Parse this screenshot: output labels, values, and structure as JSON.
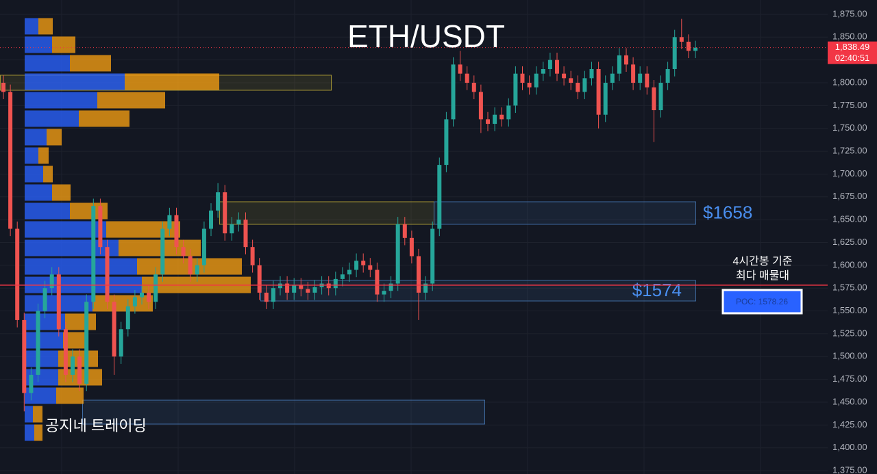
{
  "chart_data": {
    "type": "candlestick",
    "title": "ETH/USDT",
    "watermark": "공지네 트레이딩",
    "up_color": "#26a69a",
    "down_color": "#ef5350",
    "open": [
      1800,
      1790,
      1640,
      1540,
      1460,
      1480,
      1550,
      1575,
      1590,
      1530,
      1480,
      1500,
      1470,
      1560,
      1665,
      1620,
      1560,
      1500,
      1530,
      1555,
      1565,
      1570,
      1560,
      1590,
      1640,
      1655,
      1620,
      1610,
      1590,
      1600,
      1640,
      1660,
      1680,
      1635,
      1645,
      1650,
      1620,
      1600,
      1570,
      1560,
      1575,
      1580,
      1570,
      1578,
      1574,
      1570,
      1576,
      1580,
      1575,
      1585,
      1590,
      1595,
      1605,
      1600,
      1595,
      1568,
      1572,
      1580,
      1645,
      1630,
      1610,
      1570,
      1580,
      1640,
      1710,
      1760,
      1820,
      1810,
      1800,
      1790,
      1760,
      1755,
      1765,
      1760,
      1775,
      1810,
      1800,
      1795,
      1810,
      1815,
      1825,
      1810,
      1805,
      1800,
      1790,
      1805,
      1815,
      1765,
      1800,
      1810,
      1830,
      1820,
      1800,
      1810,
      1795,
      1770,
      1800,
      1815,
      1850,
      1845,
      1835
    ],
    "high": [
      1808,
      1798,
      1648,
      1548,
      1488,
      1558,
      1583,
      1598,
      1598,
      1538,
      1508,
      1508,
      1568,
      1673,
      1673,
      1628,
      1568,
      1538,
      1563,
      1573,
      1578,
      1578,
      1598,
      1648,
      1663,
      1663,
      1628,
      1618,
      1608,
      1648,
      1668,
      1690,
      1688,
      1653,
      1658,
      1658,
      1628,
      1608,
      1578,
      1583,
      1588,
      1588,
      1586,
      1586,
      1582,
      1584,
      1588,
      1588,
      1593,
      1598,
      1603,
      1613,
      1613,
      1608,
      1603,
      1580,
      1588,
      1653,
      1653,
      1638,
      1618,
      1588,
      1648,
      1718,
      1768,
      1828,
      1835,
      1818,
      1808,
      1798,
      1768,
      1773,
      1773,
      1783,
      1818,
      1818,
      1808,
      1818,
      1823,
      1833,
      1833,
      1818,
      1813,
      1808,
      1813,
      1823,
      1823,
      1808,
      1818,
      1838,
      1838,
      1828,
      1818,
      1818,
      1803,
      1808,
      1823,
      1858,
      1870,
      1853,
      1846
    ],
    "low": [
      1782,
      1632,
      1532,
      1440,
      1452,
      1472,
      1542,
      1567,
      1522,
      1472,
      1472,
      1462,
      1462,
      1552,
      1612,
      1552,
      1480,
      1492,
      1522,
      1547,
      1557,
      1552,
      1552,
      1582,
      1632,
      1612,
      1602,
      1582,
      1582,
      1592,
      1632,
      1652,
      1627,
      1627,
      1637,
      1612,
      1592,
      1562,
      1552,
      1552,
      1567,
      1562,
      1562,
      1566,
      1562,
      1562,
      1568,
      1567,
      1567,
      1577,
      1582,
      1587,
      1592,
      1587,
      1560,
      1560,
      1564,
      1572,
      1622,
      1602,
      1540,
      1562,
      1572,
      1632,
      1702,
      1752,
      1802,
      1792,
      1782,
      1745,
      1747,
      1747,
      1752,
      1752,
      1767,
      1792,
      1787,
      1787,
      1802,
      1807,
      1802,
      1797,
      1792,
      1782,
      1782,
      1797,
      1750,
      1757,
      1792,
      1802,
      1812,
      1792,
      1792,
      1787,
      1735,
      1762,
      1792,
      1807,
      1837,
      1827,
      1827
    ],
    "close": [
      1790,
      1640,
      1540,
      1460,
      1480,
      1550,
      1575,
      1590,
      1530,
      1480,
      1500,
      1470,
      1560,
      1665,
      1620,
      1560,
      1500,
      1530,
      1555,
      1565,
      1570,
      1560,
      1590,
      1640,
      1655,
      1620,
      1610,
      1590,
      1600,
      1640,
      1660,
      1680,
      1635,
      1645,
      1650,
      1620,
      1600,
      1570,
      1560,
      1575,
      1580,
      1570,
      1578,
      1574,
      1570,
      1576,
      1580,
      1575,
      1585,
      1590,
      1595,
      1605,
      1600,
      1595,
      1568,
      1572,
      1580,
      1645,
      1630,
      1610,
      1570,
      1580,
      1640,
      1710,
      1760,
      1820,
      1810,
      1800,
      1790,
      1760,
      1755,
      1765,
      1760,
      1775,
      1810,
      1800,
      1795,
      1810,
      1815,
      1825,
      1810,
      1805,
      1800,
      1790,
      1805,
      1815,
      1765,
      1800,
      1810,
      1830,
      1820,
      1800,
      1810,
      1795,
      1770,
      1800,
      1815,
      1850,
      1845,
      1835,
      1838.49
    ],
    "ylim": [
      1371.3,
      1890.7
    ],
    "yticks": [
      {
        "value": 1375,
        "label": "1,375.00"
      },
      {
        "value": 1400,
        "label": "1,400.00"
      },
      {
        "value": 1425,
        "label": "1,425.00"
      },
      {
        "value": 1450,
        "label": "1,450.00"
      },
      {
        "value": 1475,
        "label": "1,475.00"
      },
      {
        "value": 1500,
        "label": "1,500.00"
      },
      {
        "value": 1525,
        "label": "1,525.00"
      },
      {
        "value": 1550,
        "label": "1,550.00"
      },
      {
        "value": 1575,
        "label": "1,575.00"
      },
      {
        "value": 1600,
        "label": "1,600.00"
      },
      {
        "value": 1625,
        "label": "1,625.00"
      },
      {
        "value": 1650,
        "label": "1,650.00"
      },
      {
        "value": 1675,
        "label": "1,675.00"
      },
      {
        "value": 1700,
        "label": "1,700.00"
      },
      {
        "value": 1725,
        "label": "1,725.00"
      },
      {
        "value": 1750,
        "label": "1,750.00"
      },
      {
        "value": 1775,
        "label": "1,775.00"
      },
      {
        "value": 1800,
        "label": "1,800.00"
      },
      {
        "value": 1825,
        "label": "1,825.00"
      },
      {
        "value": 1850,
        "label": "1,850.00"
      },
      {
        "value": 1875,
        "label": "1,875.00"
      }
    ],
    "last_price": {
      "value": 1838.49,
      "label": "1,838.49",
      "countdown": "02:40:51",
      "color": "#f23645"
    },
    "poc": {
      "value": 1578.26,
      "label": "POC: 1578.26",
      "note": [
        "4시간봉 기준",
        "최다 매물대"
      ],
      "color": "#f23645"
    },
    "volume_profile": {
      "bins": [
        1406.5,
        1426.7,
        1447.0,
        1467.2,
        1487.4,
        1507.7,
        1527.9,
        1548.2,
        1568.4,
        1588.6,
        1608.9,
        1629.1,
        1649.4,
        1669.6,
        1689.8,
        1710.1,
        1730.3,
        1750.6,
        1770.8,
        1791.0,
        1811.3,
        1831.5,
        1851.8,
        1872.0
      ],
      "buy": [
        14,
        12,
        46,
        49,
        49,
        56,
        59,
        99,
        171,
        164,
        137,
        119,
        66,
        40,
        27,
        20,
        32,
        79,
        106,
        146,
        66,
        40,
        20
      ],
      "sell": [
        12,
        14,
        40,
        64,
        58,
        36,
        45,
        88,
        159,
        153,
        120,
        108,
        55,
        27,
        14,
        15,
        22,
        74,
        99,
        138,
        60,
        34,
        21
      ],
      "buy_color": "#2962ff",
      "sell_color": "#f59d12"
    },
    "zones": [
      {
        "top": 1808.3,
        "bottom": 1791.8,
        "color": "#c9b43a"
      },
      {
        "top": 1669.6,
        "bottom": 1644.9,
        "color": "#c9b43a"
      },
      {
        "top": 1669.6,
        "bottom": 1644.9,
        "color": "#4a7fc0",
        "label": "$1658"
      },
      {
        "top": 1583.4,
        "bottom": 1560.9,
        "color": "#4a7fc0",
        "label": "$1574"
      },
      {
        "top": 1452.2,
        "bottom": 1426.0,
        "color": "#4a7fc0"
      }
    ]
  }
}
